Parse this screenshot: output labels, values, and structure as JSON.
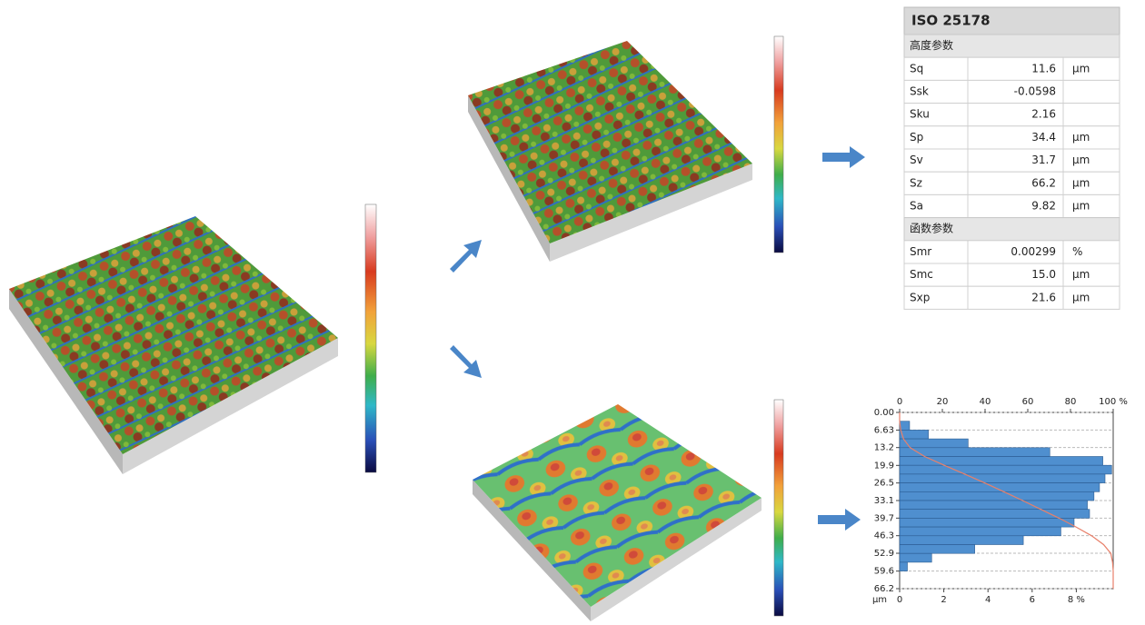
{
  "table": {
    "title": "ISO 25178",
    "sections": [
      {
        "title": "高度参数",
        "rows": [
          {
            "name": "Sq",
            "value": "11.6",
            "unit": "µm"
          },
          {
            "name": "Ssk",
            "value": "-0.0598"
          },
          {
            "name": "Sku",
            "value": "2.16"
          },
          {
            "name": "Sp",
            "value": "34.4",
            "unit": "µm"
          },
          {
            "name": "Sv",
            "value": "31.7",
            "unit": "µm"
          },
          {
            "name": "Sz",
            "value": "66.2",
            "unit": "µm"
          },
          {
            "name": "Sa",
            "value": "9.82",
            "unit": "µm"
          }
        ]
      },
      {
        "title": "函数参数",
        "rows": [
          {
            "name": "Smr",
            "value": "0.00299",
            "unit": "%"
          },
          {
            "name": "Smc",
            "value": "15.0",
            "unit": "µm"
          },
          {
            "name": "Sxp",
            "value": "21.6",
            "unit": "µm"
          }
        ]
      }
    ]
  },
  "chart_data": {
    "type": "histogram",
    "orientation": "horizontal",
    "y_direction": "down",
    "color": "#4f8fcf",
    "bins": [
      0,
      3.31,
      6.62,
      9.93,
      13.24,
      16.55,
      19.86,
      23.17,
      26.48,
      29.79,
      33.1,
      36.41,
      39.72,
      43.03,
      46.34,
      49.65,
      52.96,
      56.27,
      59.58,
      62.89,
      66.2
    ],
    "counts": [
      0,
      0.45,
      1.3,
      3.1,
      6.8,
      9.2,
      9.6,
      9.3,
      9.05,
      8.8,
      8.5,
      8.6,
      7.9,
      7.3,
      5.6,
      3.4,
      1.45,
      0.35,
      0,
      0
    ],
    "bearing_curve": {
      "color": "#e8806a",
      "values": [
        0,
        0,
        0.5,
        1.8,
        4.9,
        11.7,
        20.9,
        30.5,
        39.8,
        48.8,
        57.6,
        66.1,
        74.7,
        82.6,
        89.9,
        95.5,
        98.9,
        99.7,
        100,
        100,
        100
      ]
    },
    "xlim": [
      0,
      9.67
    ],
    "xticks": [
      0,
      2,
      4,
      6,
      {
        "value": 8,
        "label": "8 %"
      }
    ],
    "x2lim": [
      0,
      100
    ],
    "x2ticks": [
      0,
      20,
      40,
      60,
      80,
      {
        "value": 100,
        "label": "100 %"
      }
    ],
    "ylim": [
      0,
      66.2
    ],
    "ylabel": "µm",
    "yticks": [
      {
        "value": 0,
        "label": "0.00"
      },
      6.63,
      13.2,
      19.9,
      26.5,
      33.1,
      39.7,
      46.3,
      52.9,
      59.6,
      66.2
    ],
    "grid": true
  }
}
